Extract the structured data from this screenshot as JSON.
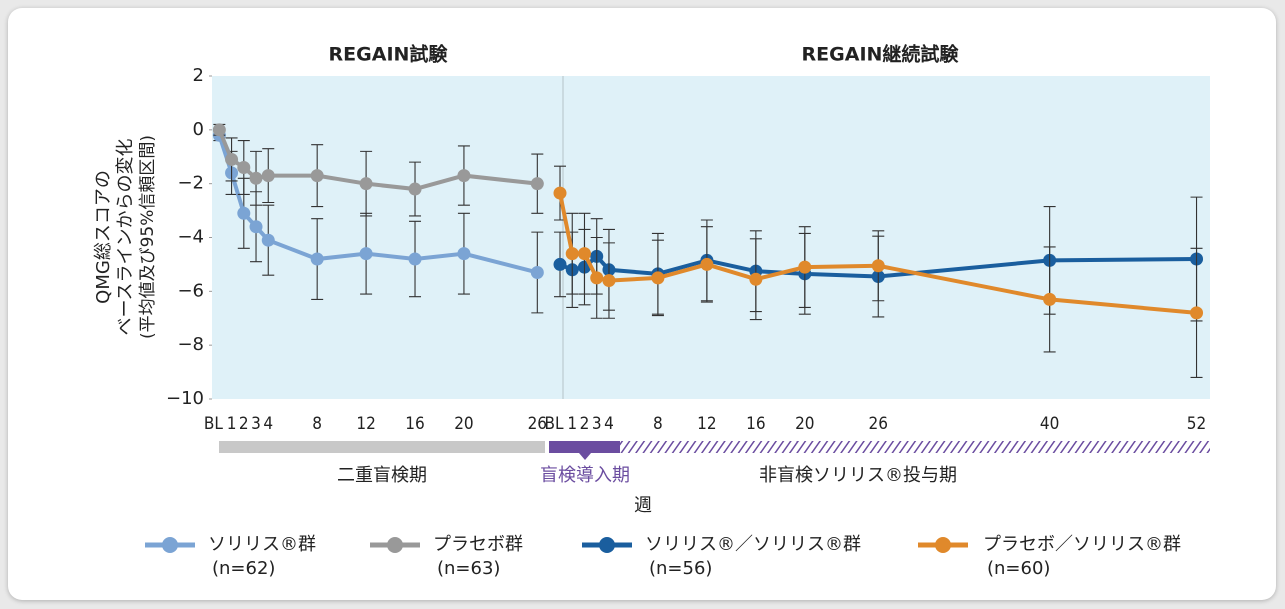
{
  "chart_data": {
    "type": "line",
    "y_label": [
      "QMG総スコアの",
      "ベースラインからの変化",
      "(平均値及び95%信頼区間)"
    ],
    "ylim": [
      -10,
      2
    ],
    "yticks": [
      2,
      0,
      {
        "value": -2,
        "label": "−2"
      },
      {
        "value": -4,
        "label": "−4"
      },
      {
        "value": -6,
        "label": "−6"
      },
      {
        "value": -8,
        "label": "−8"
      },
      {
        "value": -10,
        "label": "−10"
      }
    ],
    "x_label": "週",
    "periods": [
      "二重盲検期",
      "盲検導入期",
      "非盲検ソリリス®投与期"
    ],
    "panels": [
      {
        "title": "REGAIN試験",
        "xlim": [
          -0.6,
          28.1
        ],
        "xticks": [
          {
            "value": 0,
            "label": "BL"
          },
          1,
          2,
          3,
          4,
          8,
          12,
          16,
          20,
          26
        ],
        "x": [
          0,
          1,
          2,
          3,
          4,
          8,
          12,
          16,
          20,
          26
        ],
        "series": [
          {
            "name": "ソリリス®群",
            "n": "(n=62)",
            "color": "#7ba4d4",
            "values": [
              -0.2,
              -1.6,
              -3.1,
              -3.6,
              -4.1,
              -4.8,
              -4.6,
              -4.8,
              -4.6,
              -5.3
            ],
            "errors": [
              0.2,
              0.8,
              1.3,
              1.3,
              1.3,
              1.5,
              1.5,
              1.4,
              1.5,
              1.5
            ]
          },
          {
            "name": "プラセボ群",
            "n": "(n=63)",
            "color": "#999999",
            "values": [
              0,
              -1.1,
              -1.4,
              -1.8,
              -1.7,
              -1.7,
              -2.0,
              -2.2,
              -1.7,
              -2.0
            ],
            "errors": [
              0.2,
              0.8,
              1.0,
              1.0,
              1.0,
              1.15,
              1.2,
              1.0,
              1.1,
              1.1
            ]
          }
        ]
      },
      {
        "title": "REGAIN継続試験",
        "xlim": [
          0,
          53.1
        ],
        "xticks": [
          {
            "value": 0,
            "label": "BL"
          },
          1,
          2,
          3,
          4,
          8,
          12,
          16,
          20,
          26,
          40,
          52
        ],
        "x": [
          0,
          1,
          2,
          3,
          4,
          8,
          12,
          16,
          20,
          26,
          40,
          52
        ],
        "series": [
          {
            "name": "ソリリス®／ソリリス®群",
            "n": "(n=56)",
            "color": "#1a5e9e",
            "values": [
              -5.0,
              -5.2,
              -5.1,
              -4.7,
              -5.2,
              -5.35,
              -4.85,
              -5.25,
              -5.35,
              -5.45,
              -4.85,
              -4.8
            ],
            "errors": [
              1.2,
              1.4,
              1.4,
              1.4,
              1.5,
              1.5,
              1.5,
              1.5,
              1.5,
              1.5,
              2.0,
              2.3
            ]
          },
          {
            "name": "プラセボ／ソリリス®群",
            "n": "(n=60)",
            "color": "#e0892b",
            "values": [
              -2.35,
              -4.6,
              -4.6,
              -5.5,
              -5.6,
              -5.5,
              -5.0,
              -5.55,
              -5.1,
              -5.05,
              -6.3,
              -6.8
            ],
            "errors": [
              1.0,
              1.5,
              1.5,
              1.5,
              1.4,
              1.4,
              1.4,
              1.5,
              1.5,
              1.3,
              1.95,
              2.4
            ]
          }
        ]
      }
    ]
  }
}
